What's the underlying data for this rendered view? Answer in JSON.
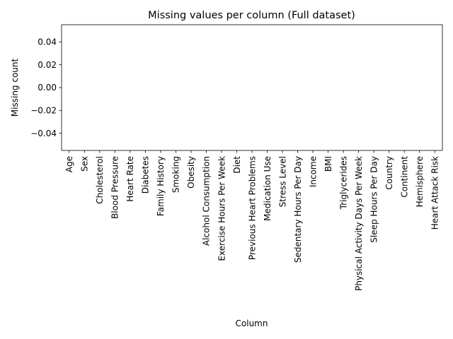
{
  "chart_data": {
    "type": "bar",
    "title": "Missing values per column (Full dataset)",
    "xlabel": "Column",
    "ylabel": "Missing count",
    "categories": [
      "Age",
      "Sex",
      "Cholesterol",
      "Blood Pressure",
      "Heart Rate",
      "Diabetes",
      "Family History",
      "Smoking",
      "Obesity",
      "Alcohol Consumption",
      "Exercise Hours Per Week",
      "Diet",
      "Previous Heart Problems",
      "Medication Use",
      "Stress Level",
      "Sedentary Hours Per Day",
      "Income",
      "BMI",
      "Triglycerides",
      "Physical Activity Days Per Week",
      "Sleep Hours Per Day",
      "Country",
      "Continent",
      "Hemisphere",
      "Heart Attack Risk"
    ],
    "values": [
      0,
      0,
      0,
      0,
      0,
      0,
      0,
      0,
      0,
      0,
      0,
      0,
      0,
      0,
      0,
      0,
      0,
      0,
      0,
      0,
      0,
      0,
      0,
      0,
      0
    ],
    "ylim": [
      -0.055,
      0.055
    ],
    "yticks": [
      -0.04,
      -0.02,
      0.0,
      0.02,
      0.04
    ],
    "ytick_labels": [
      "−0.04",
      "−0.02",
      "0.00",
      "0.02",
      "0.04"
    ],
    "grid": false,
    "legend": "none",
    "colors": {
      "bar": "#1f77b4",
      "axis": "#000000",
      "background": "#ffffff"
    }
  }
}
